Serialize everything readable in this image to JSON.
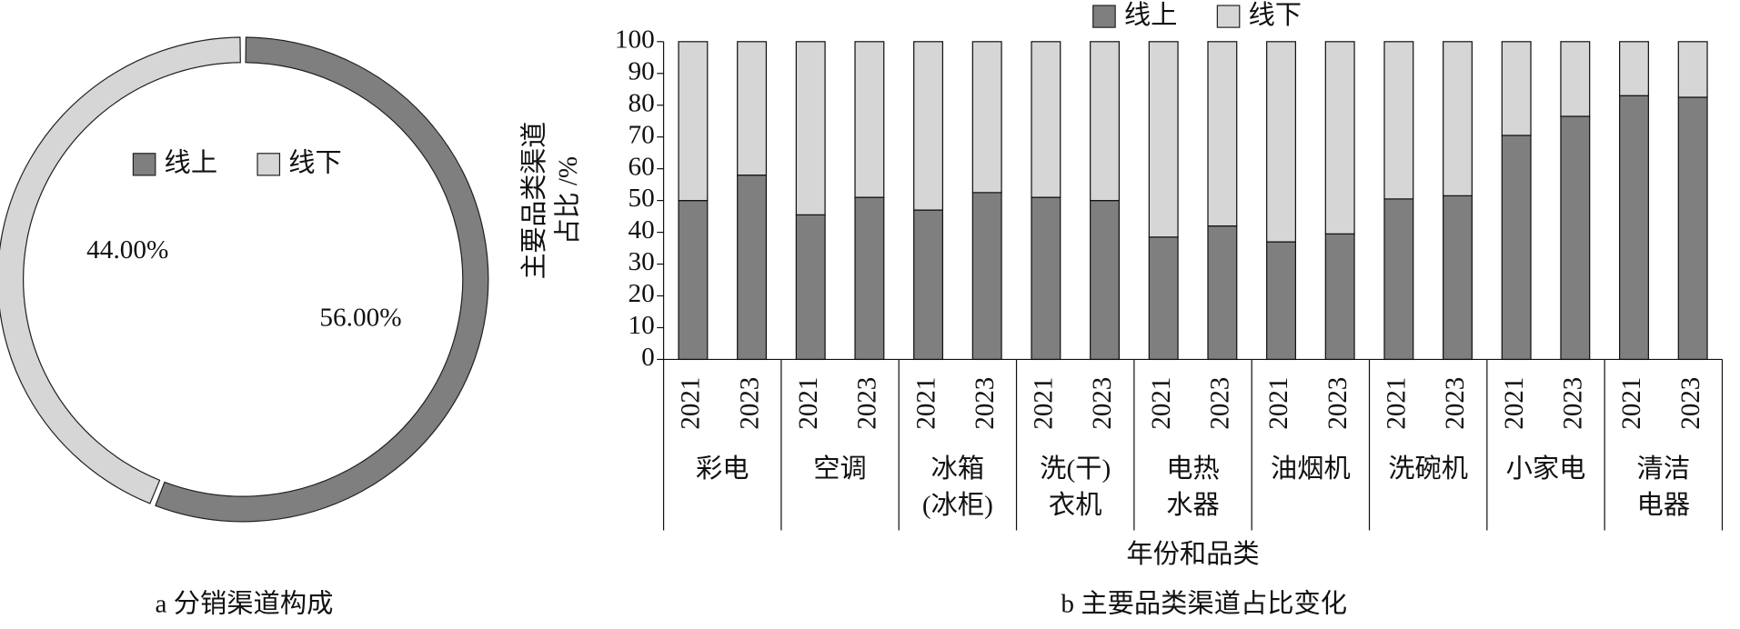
{
  "chart_data": [
    {
      "type": "donut",
      "caption": "a 分销渠道构成",
      "categories": [
        "线上",
        "线下"
      ],
      "values": [
        56,
        44
      ],
      "value_labels": [
        "56.00%",
        "44.00%"
      ],
      "colors": [
        "#7f7f80",
        "#d6d6d6"
      ]
    },
    {
      "type": "stacked_bar",
      "caption": "b 主要品类渠道占比变化",
      "x_label": "年份和品类",
      "y_label": [
        "主要品类渠道",
        "占比 /%"
      ],
      "categories": [
        "2021",
        "2023",
        "2021",
        "2023",
        "2021",
        "2023",
        "2021",
        "2023",
        "2021",
        "2023",
        "2021",
        "2023",
        "2021",
        "2023",
        "2021",
        "2023",
        "2021",
        "2023"
      ],
      "groups": [
        [
          "彩电"
        ],
        [
          "空调"
        ],
        [
          "冰箱",
          "(冰柜)"
        ],
        [
          "洗(干)",
          "衣机"
        ],
        [
          "电热",
          "水器"
        ],
        [
          "油烟机"
        ],
        [
          "洗碗机"
        ],
        [
          "小家电"
        ],
        [
          "清洁",
          "电器"
        ]
      ],
      "series": [
        {
          "name": "线上",
          "color": "#7f7f80",
          "values": [
            50,
            58,
            45.5,
            51,
            47,
            52.5,
            51,
            50,
            38.5,
            42,
            37,
            39.5,
            50.5,
            51.5,
            70.5,
            76.5,
            83,
            82.5
          ]
        },
        {
          "name": "线下",
          "color": "#d6d6d6",
          "values": [
            50,
            42,
            54.5,
            49,
            53,
            47.5,
            49,
            50,
            61.5,
            58,
            63,
            60.5,
            49.5,
            48.5,
            29.5,
            23.5,
            17,
            17.5
          ]
        }
      ],
      "ylim": [
        0,
        100
      ],
      "yticks": [
        0,
        10,
        20,
        30,
        40,
        50,
        60,
        70,
        80,
        90,
        100
      ]
    }
  ]
}
